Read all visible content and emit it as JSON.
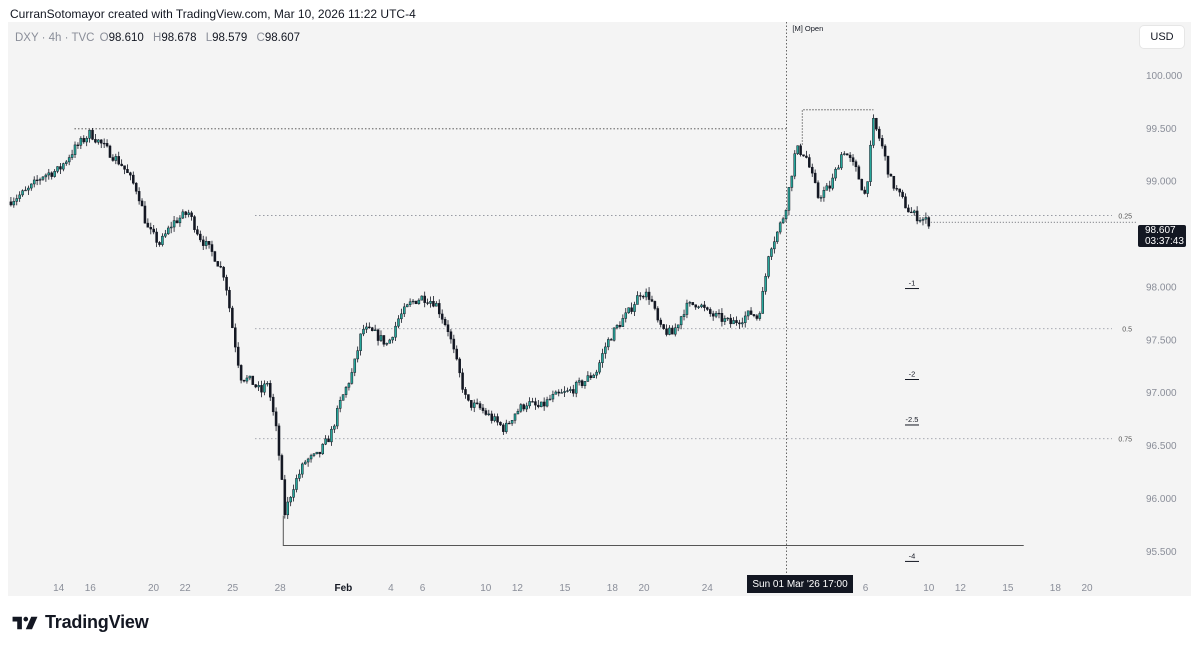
{
  "attribution": "CurranSotomayor created with TradingView.com, Mar 10, 2026 11:22 UTC-4",
  "legend": {
    "symbol": "DXY · 4h · TVC",
    "open_key": "O",
    "open": "98.610",
    "high_key": "H",
    "high": "98.678",
    "low_key": "L",
    "low": "98.579",
    "close_key": "C",
    "close": "98.607"
  },
  "currency": "USD",
  "brand": {
    "name": "TradingView",
    "logo_icon": "tradingview-logo-icon"
  },
  "last_price": {
    "price": "98.607",
    "countdown": "03:37:43"
  },
  "crosshair_date": "Sun 01 Mar '26   17:00",
  "colors": {
    "up": "#26a69a",
    "down": "#131722",
    "level_line": "#8a8e99",
    "background": "#f4f4f4"
  },
  "chart_data": {
    "type": "candlestick",
    "symbol": "DXY",
    "interval": "4h",
    "price_axis_side": "right",
    "ylim": [
      95.3,
      100.5
    ],
    "y_ticks": [
      "100.000",
      "99.500",
      "99.000",
      "98.500",
      "98.000",
      "97.500",
      "97.000",
      "96.500",
      "96.000",
      "95.500"
    ],
    "y_tick_values": [
      100.0,
      99.5,
      99.0,
      98.5,
      98.0,
      97.5,
      97.0,
      96.5,
      96.0,
      95.5
    ],
    "x_ticks": [
      {
        "label": "14",
        "day": 14
      },
      {
        "label": "16",
        "day": 16
      },
      {
        "label": "20",
        "day": 20
      },
      {
        "label": "22",
        "day": 22
      },
      {
        "label": "25",
        "day": 25
      },
      {
        "label": "28",
        "day": 28
      },
      {
        "label": "Feb",
        "day": 32
      },
      {
        "label": "4",
        "day": 35
      },
      {
        "label": "6",
        "day": 37
      },
      {
        "label": "10",
        "day": 41
      },
      {
        "label": "12",
        "day": 43
      },
      {
        "label": "15",
        "day": 46
      },
      {
        "label": "18",
        "day": 49
      },
      {
        "label": "20",
        "day": 51
      },
      {
        "label": "24",
        "day": 55
      },
      {
        "label": "4",
        "day": 63
      },
      {
        "label": "6",
        "day": 65
      },
      {
        "label": "10",
        "day": 69
      },
      {
        "label": "12",
        "day": 71
      },
      {
        "label": "15",
        "day": 74
      },
      {
        "label": "18",
        "day": 77
      },
      {
        "label": "20",
        "day": 79
      }
    ],
    "x_range_days": [
      10.8,
      80.2
    ],
    "price_path": [
      [
        10.8,
        98.8
      ],
      [
        12,
        98.9
      ],
      [
        13,
        99.05
      ],
      [
        14,
        99.1
      ],
      [
        15,
        99.3
      ],
      [
        16,
        99.45
      ],
      [
        17,
        99.3
      ],
      [
        18,
        99.15
      ],
      [
        19,
        98.9
      ],
      [
        19.6,
        98.55
      ],
      [
        20.4,
        98.4
      ],
      [
        21.2,
        98.6
      ],
      [
        22.2,
        98.7
      ],
      [
        23,
        98.45
      ],
      [
        23.8,
        98.3
      ],
      [
        24.5,
        98.1
      ],
      [
        25.0,
        97.6
      ],
      [
        25.5,
        97.15
      ],
      [
        26.2,
        97.1
      ],
      [
        26.8,
        97.0
      ],
      [
        27.2,
        97.1
      ],
      [
        27.8,
        96.6
      ],
      [
        28.3,
        95.85
      ],
      [
        28.8,
        96.1
      ],
      [
        29.6,
        96.35
      ],
      [
        30.4,
        96.4
      ],
      [
        31.2,
        96.6
      ],
      [
        31.8,
        96.9
      ],
      [
        32.6,
        97.2
      ],
      [
        33.2,
        97.6
      ],
      [
        34.0,
        97.55
      ],
      [
        34.8,
        97.45
      ],
      [
        35.5,
        97.7
      ],
      [
        36.3,
        97.85
      ],
      [
        37.0,
        97.9
      ],
      [
        37.8,
        97.85
      ],
      [
        38.6,
        97.6
      ],
      [
        39.2,
        97.25
      ],
      [
        39.8,
        96.9
      ],
      [
        40.6,
        96.85
      ],
      [
        41.4,
        96.75
      ],
      [
        42.2,
        96.65
      ],
      [
        42.8,
        96.8
      ],
      [
        43.6,
        96.9
      ],
      [
        44.4,
        96.85
      ],
      [
        45.2,
        96.95
      ],
      [
        46.2,
        97.0
      ],
      [
        47.2,
        97.1
      ],
      [
        48.0,
        97.2
      ],
      [
        48.6,
        97.45
      ],
      [
        49.2,
        97.6
      ],
      [
        50.0,
        97.75
      ],
      [
        50.8,
        97.95
      ],
      [
        51.4,
        97.9
      ],
      [
        52.0,
        97.6
      ],
      [
        52.8,
        97.55
      ],
      [
        53.6,
        97.8
      ],
      [
        54.4,
        97.85
      ],
      [
        55.0,
        97.75
      ],
      [
        55.8,
        97.7
      ],
      [
        56.5,
        97.65
      ],
      [
        57.2,
        97.7
      ],
      [
        57.8,
        97.75
      ],
      [
        58.2,
        97.7
      ],
      [
        58.6,
        98.0
      ],
      [
        58.9,
        98.35
      ],
      [
        59.4,
        98.5
      ],
      [
        59.9,
        98.7
      ],
      [
        60.6,
        99.3
      ],
      [
        61.2,
        99.25
      ],
      [
        62.0,
        98.85
      ],
      [
        62.8,
        98.95
      ],
      [
        63.6,
        99.3
      ],
      [
        64.4,
        99.1
      ],
      [
        65.0,
        98.85
      ],
      [
        65.5,
        99.55
      ],
      [
        66.0,
        99.35
      ],
      [
        66.6,
        99.0
      ],
      [
        67.2,
        98.85
      ],
      [
        67.8,
        98.7
      ],
      [
        68.4,
        98.65
      ],
      [
        69.0,
        98.61
      ]
    ],
    "annotations": {
      "levels": [
        {
          "label": "0.25",
          "price": 98.67
        },
        {
          "label": "0.5",
          "price": 97.6
        },
        {
          "label": "0.75",
          "price": 96.56
        }
      ],
      "markers": [
        {
          "label": "-1",
          "price": 97.98
        },
        {
          "label": "-2",
          "price": 97.12
        },
        {
          "label": "-2.5",
          "price": 96.69
        },
        {
          "label": "-4",
          "price": 95.4
        }
      ],
      "session_label": "[M] Open",
      "session_day": 60.0,
      "prior_high": {
        "from_day": 15.0,
        "to_day": 60.0,
        "price": 99.49
      },
      "open_high": {
        "from_day": 61.0,
        "to_day": 65.5,
        "price": 99.67
      },
      "low_line": {
        "from_day": 28.2,
        "to_day": 75.0,
        "price": 95.55
      }
    }
  }
}
